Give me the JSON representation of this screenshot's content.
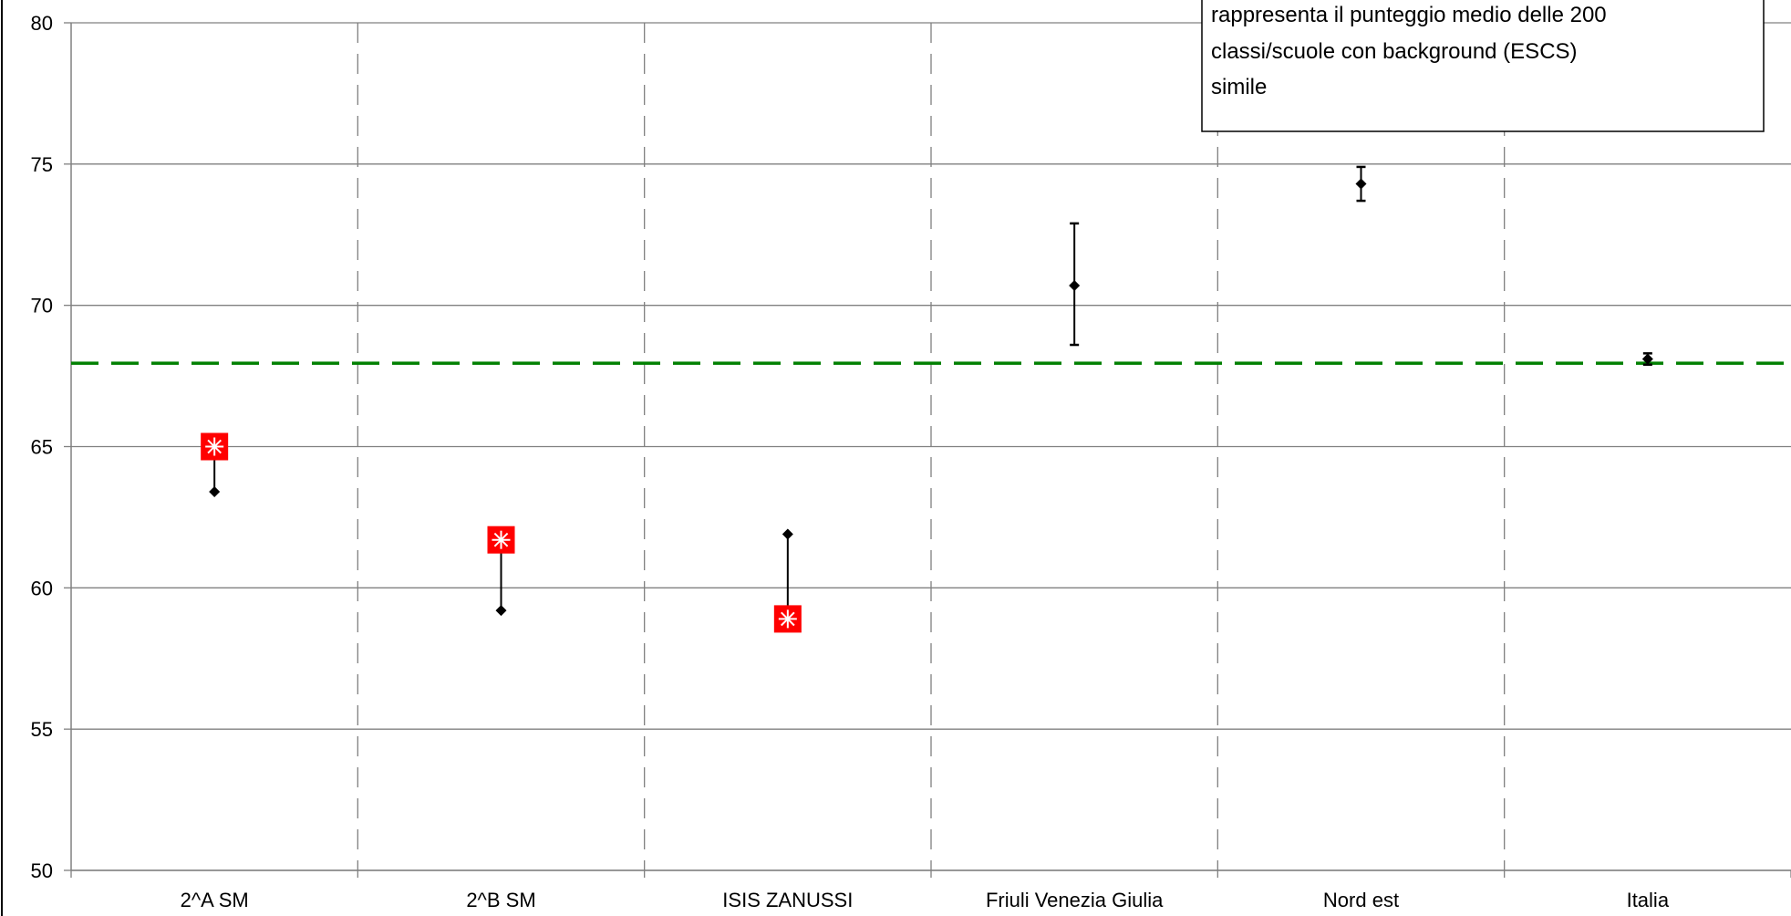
{
  "chart_data": {
    "type": "scatter",
    "categories": [
      "2^A SM",
      "2^B SM",
      "ISIS ZANUSSI",
      "Friuli Venezia Giulia",
      "Nord est",
      "Italia"
    ],
    "ylim": [
      50,
      80
    ],
    "yticks": [
      50,
      55,
      60,
      65,
      70,
      75,
      80
    ],
    "grid": true,
    "reference_line": {
      "value": 67.95,
      "color": "#008000",
      "style": "dashed"
    },
    "series": [
      {
        "marker": "diamond",
        "color": "#000000",
        "points": [
          {
            "category": "2^A SM",
            "value": 63.4
          },
          {
            "category": "2^B SM",
            "value": 59.2
          },
          {
            "category": "ISIS ZANUSSI",
            "value": 61.9
          },
          {
            "category": "Friuli Venezia Giulia",
            "value": 70.7,
            "low": 68.6,
            "high": 72.9
          },
          {
            "category": "Nord est",
            "value": 74.3,
            "low": 73.7,
            "high": 74.9
          },
          {
            "category": "Italia",
            "value": 68.1,
            "low": 67.9,
            "high": 68.3
          }
        ]
      },
      {
        "marker": "red-square-asterisk",
        "color": "#ff0000",
        "points": [
          {
            "category": "2^A SM",
            "value": 65.0
          },
          {
            "category": "2^B SM",
            "value": 61.7
          },
          {
            "category": "ISIS ZANUSSI",
            "value": 58.9
          }
        ]
      }
    ],
    "annotation": {
      "lines": [
        "rappresenta il punteggio medio delle 200",
        "classi/scuole con background (ESCS)",
        "simile"
      ],
      "placement": "top-right"
    }
  }
}
